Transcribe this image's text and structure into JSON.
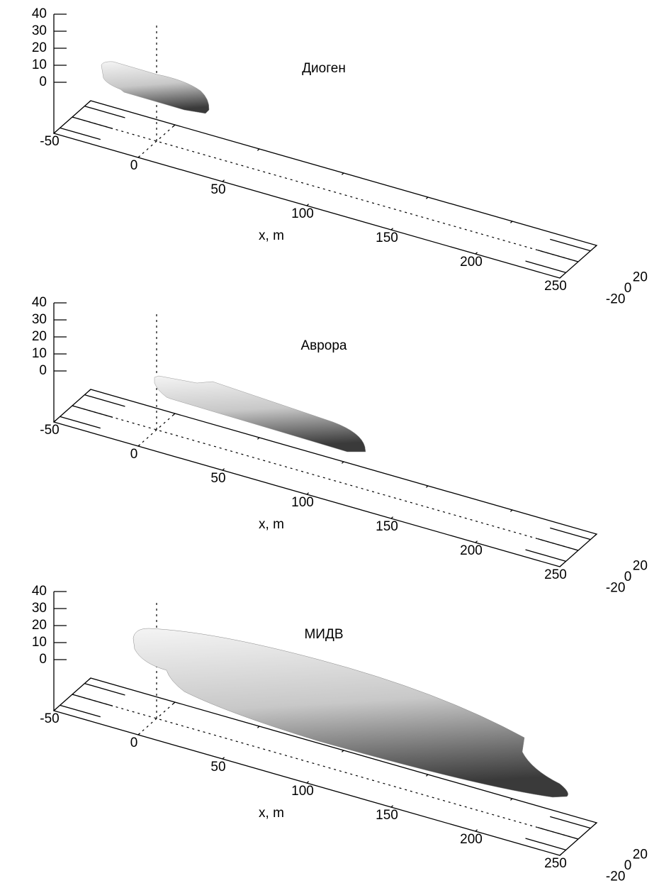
{
  "chart_data": [
    {
      "type": "surface3d",
      "title": "Диоген",
      "xlabel": "x, m",
      "xlim": [
        -50,
        250
      ],
      "xticks": [
        -50,
        0,
        50,
        100,
        150,
        200,
        250
      ],
      "ylim": [
        -30,
        30
      ],
      "yticks": [
        -20,
        0,
        20
      ],
      "zlim": [
        -30,
        40
      ],
      "zticks": [
        0,
        10,
        20,
        30,
        40
      ]
    },
    {
      "type": "surface3d",
      "title": "Аврора",
      "xlabel": "x, m",
      "xlim": [
        -50,
        250
      ],
      "xticks": [
        -50,
        0,
        50,
        100,
        150,
        200,
        250
      ],
      "ylim": [
        -30,
        30
      ],
      "yticks": [
        -20,
        0,
        20
      ],
      "zlim": [
        -30,
        40
      ],
      "zticks": [
        0,
        10,
        20,
        30,
        40
      ]
    },
    {
      "type": "surface3d",
      "title": "МИДВ",
      "xlabel": "x, m",
      "xlim": [
        -50,
        250
      ],
      "xticks": [
        -50,
        0,
        50,
        100,
        150,
        200,
        250
      ],
      "ylim": [
        -30,
        30
      ],
      "yticks": [
        -20,
        0,
        20
      ],
      "zlim": [
        -30,
        40
      ],
      "zticks": [
        0,
        10,
        20,
        30,
        40
      ]
    }
  ]
}
